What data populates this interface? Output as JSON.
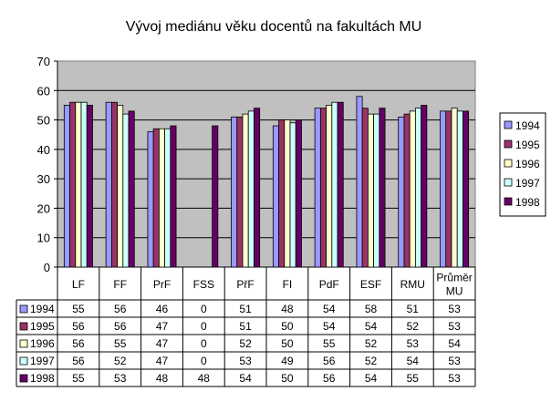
{
  "chart_data": {
    "type": "bar",
    "title": "Vývoj mediánu věku docentů na fakultách MU",
    "categories": [
      "LF",
      "FF",
      "PrF",
      "FSS",
      "PřF",
      "FI",
      "PdF",
      "ESF",
      "RMU",
      "Průměr MU"
    ],
    "category_lines": [
      [
        "LF"
      ],
      [
        "FF"
      ],
      [
        "PrF"
      ],
      [
        "FSS"
      ],
      [
        "PřF"
      ],
      [
        "FI"
      ],
      [
        "PdF"
      ],
      [
        "ESF"
      ],
      [
        "RMU"
      ],
      [
        "Průměr",
        "MU"
      ]
    ],
    "ylim": [
      0,
      70
    ],
    "yticks": [
      "0",
      "10",
      "20",
      "30",
      "40",
      "50",
      "60",
      "70"
    ],
    "grid": true,
    "legend_position": "right",
    "series": [
      {
        "name": "1994",
        "color": "#9999ff",
        "values": [
          55,
          56,
          46,
          0,
          51,
          48,
          54,
          58,
          51,
          53
        ]
      },
      {
        "name": "1995",
        "color": "#993366",
        "values": [
          56,
          56,
          47,
          0,
          51,
          50,
          54,
          54,
          52,
          53
        ]
      },
      {
        "name": "1996",
        "color": "#ffffcc",
        "values": [
          56,
          55,
          47,
          0,
          52,
          50,
          55,
          52,
          53,
          54
        ]
      },
      {
        "name": "1997",
        "color": "#ccffff",
        "values": [
          56,
          52,
          47,
          0,
          53,
          49,
          56,
          52,
          54,
          53
        ]
      },
      {
        "name": "1998",
        "color": "#660066",
        "values": [
          55,
          53,
          48,
          48,
          54,
          50,
          56,
          54,
          55,
          53
        ]
      }
    ],
    "plot_background": "#c0c0c0"
  }
}
